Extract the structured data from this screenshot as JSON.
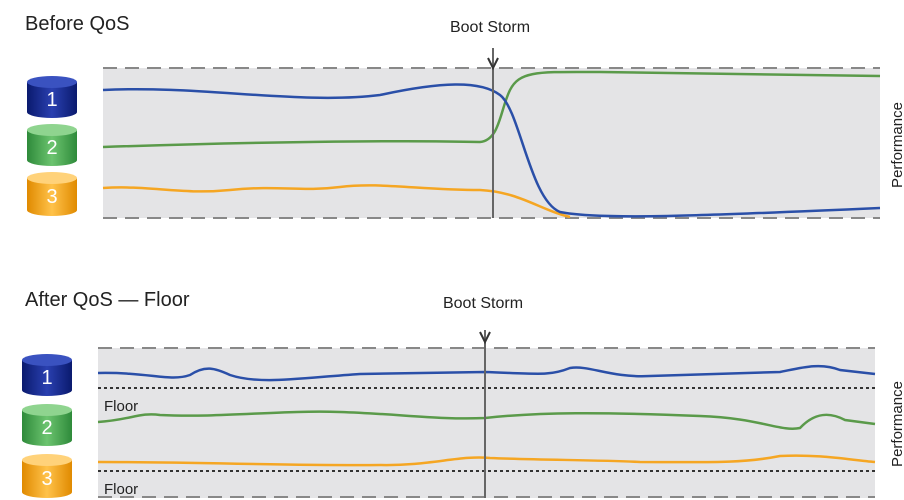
{
  "panels": [
    {
      "title": "Before QoS",
      "event": "Boot Storm",
      "axis_label": "Performance",
      "volumes": [
        "1",
        "2",
        "3"
      ]
    },
    {
      "title": "After QoS — Floor",
      "event": "Boot Storm",
      "axis_label": "Performance",
      "volumes": [
        "1",
        "2",
        "3"
      ],
      "floor_labels": [
        "Floor",
        "Floor"
      ]
    }
  ]
}
